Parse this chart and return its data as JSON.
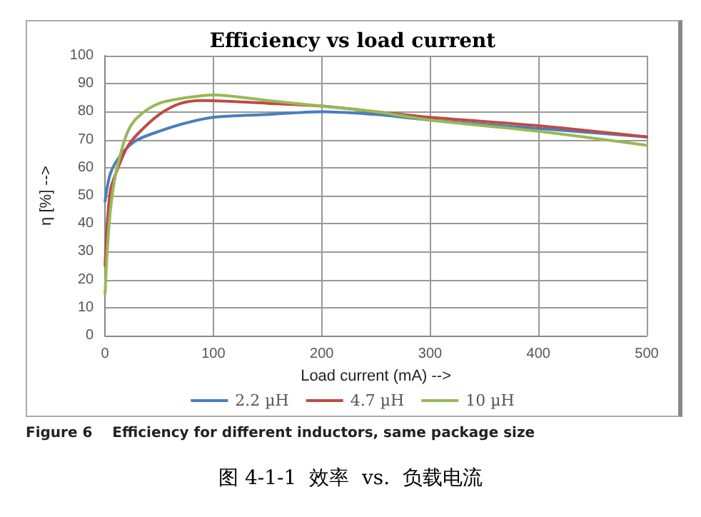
{
  "chart_data": {
    "type": "line",
    "title": "Efficiency vs load current",
    "xlabel": "Load current (mA) -->",
    "ylabel": "η [%] -->",
    "xlim": [
      0,
      500
    ],
    "xticks": [
      0,
      100,
      200,
      300,
      400,
      500
    ],
    "ylim": [
      0,
      100
    ],
    "yticks": [
      0,
      10,
      20,
      30,
      40,
      50,
      60,
      70,
      80,
      90,
      100
    ],
    "grid": true,
    "legend": "bottom",
    "marker": "none",
    "line_style": "solid",
    "annotations": [
      "Figure 6    Efficiency for different inductors, same package size",
      "图 4-1-1  效率  vs.  负载电流"
    ],
    "series": [
      {
        "name": "2.2 µH",
        "color": "#4a7ebb",
        "x": [
          0,
          2,
          5,
          10,
          20,
          30,
          50,
          75,
          100,
          150,
          200,
          250,
          300,
          400,
          500
        ],
        "values": [
          48,
          53,
          58,
          62,
          67,
          70,
          73,
          76,
          78,
          79,
          80,
          79,
          77,
          74,
          71
        ]
      },
      {
        "name": "4.7 µH",
        "color": "#be4b48",
        "x": [
          0,
          2,
          5,
          10,
          20,
          30,
          50,
          70,
          90,
          150,
          200,
          250,
          300,
          400,
          500
        ],
        "values": [
          25,
          40,
          52,
          58,
          67,
          72,
          79,
          83,
          84,
          83,
          82,
          80,
          78,
          75,
          71
        ]
      },
      {
        "name": "10 µH",
        "color": "#98b954",
        "x": [
          0,
          2,
          5,
          10,
          20,
          30,
          50,
          75,
          100,
          150,
          200,
          250,
          300,
          400,
          500
        ],
        "values": [
          15,
          30,
          45,
          58,
          72,
          78,
          83,
          85,
          86,
          84,
          82,
          80,
          77,
          73,
          68
        ]
      }
    ]
  }
}
